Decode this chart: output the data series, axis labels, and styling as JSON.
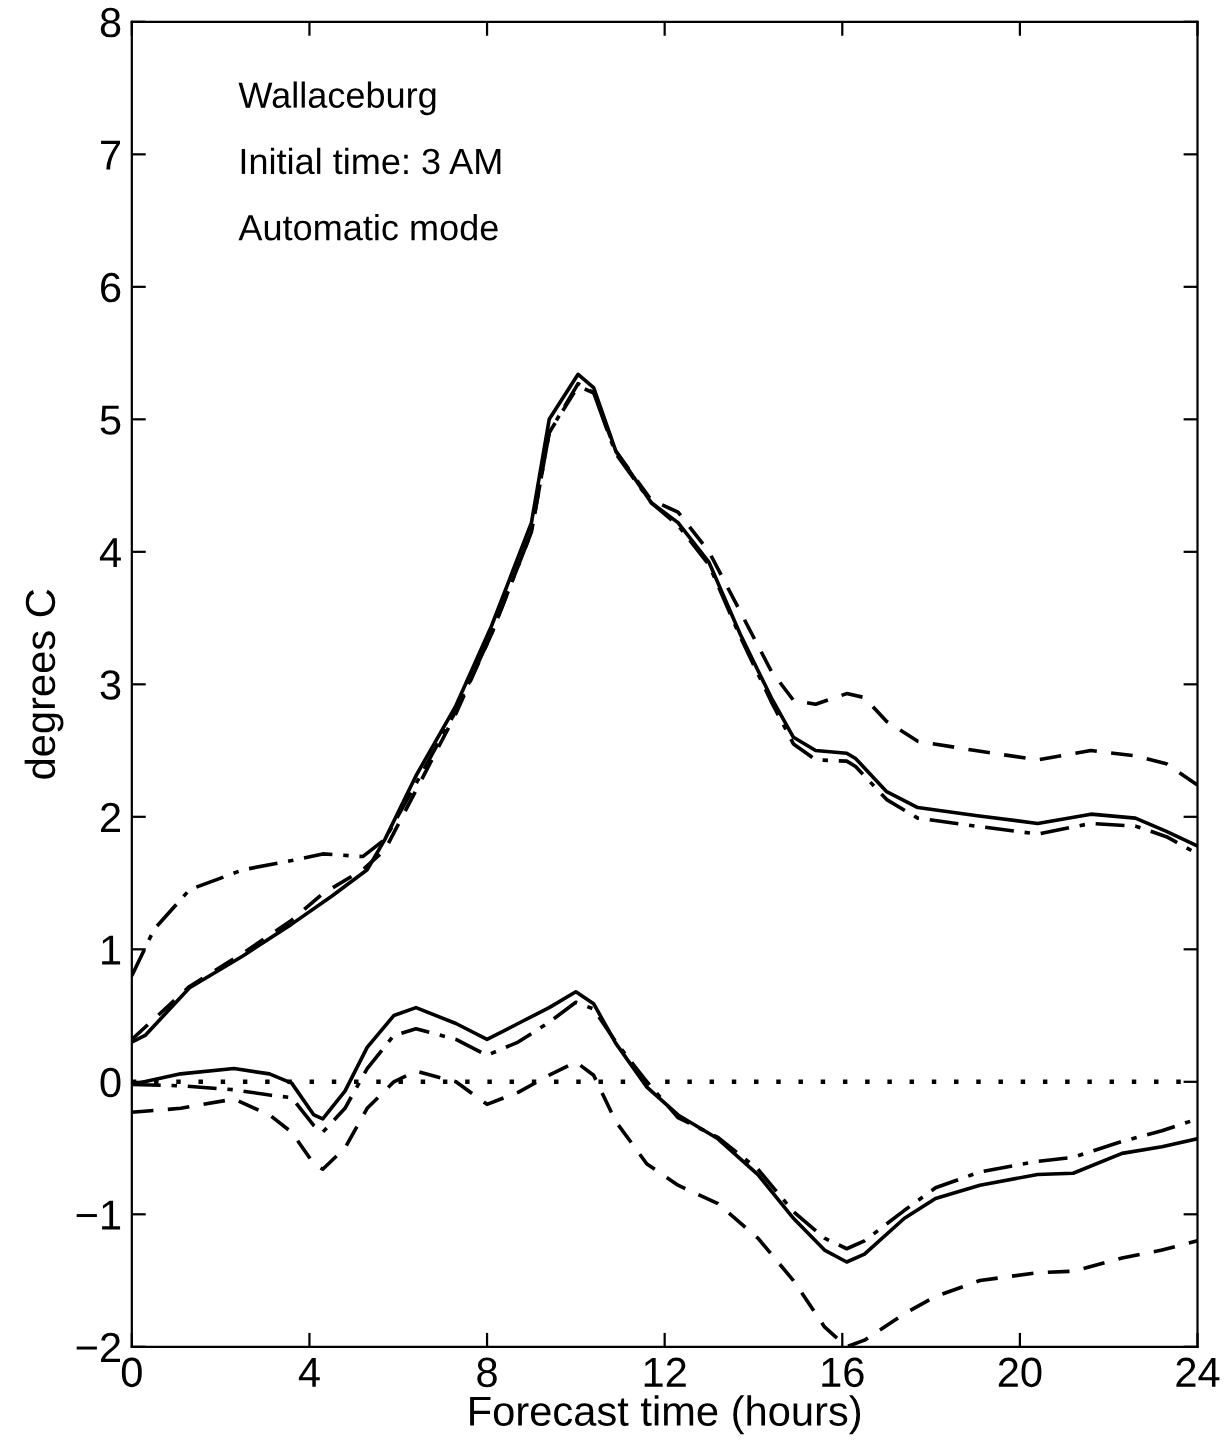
{
  "chart_data": {
    "type": "line",
    "xlabel": "Forecast time (hours)",
    "ylabel": "degrees C",
    "annotations": [
      "Wallaceburg",
      "Initial time: 3 AM",
      "Automatic mode"
    ],
    "xlim": [
      0,
      24
    ],
    "xticks": [
      0,
      4,
      8,
      12,
      16,
      20,
      24
    ],
    "ylim": [
      -2,
      8
    ],
    "yticks": [
      -2,
      -1,
      0,
      1,
      2,
      3,
      4,
      5,
      6,
      7,
      8
    ],
    "grid": false,
    "legend": false,
    "ref_lines": [
      {
        "axis": "y",
        "value": 0,
        "color": "#000000",
        "line_style": "dotted"
      }
    ],
    "series": [
      {
        "color": "#000000",
        "line_style": "solid",
        "x": [
          0,
          0.3,
          1.3,
          2.5,
          3.6,
          4.5,
          5.3,
          5.7,
          6.4,
          7.3,
          8.1,
          9.0,
          9.4,
          10.05,
          10.4,
          10.9,
          11.7,
          12.3,
          13.0,
          13.7,
          14.4,
          14.9,
          15.4,
          16.1,
          16.3,
          17.0,
          17.7,
          19.0,
          20.4,
          21.6,
          22.6,
          23.3,
          24
        ],
        "values": [
          0.3,
          0.35,
          0.71,
          0.95,
          1.19,
          1.4,
          1.6,
          1.83,
          2.31,
          2.84,
          3.44,
          4.22,
          5.0,
          5.34,
          5.24,
          4.76,
          4.37,
          4.22,
          3.92,
          3.38,
          2.9,
          2.6,
          2.5,
          2.48,
          2.44,
          2.19,
          2.07,
          2.01,
          1.95,
          2.02,
          1.99,
          1.89,
          1.78
        ]
      },
      {
        "color": "#000000",
        "line_style": "dashed",
        "x": [
          0,
          1.3,
          2.5,
          3.6,
          4.3,
          5.2,
          5.7,
          6.4,
          7.3,
          8.1,
          9.0,
          9.4,
          10.05,
          10.4,
          10.9,
          11.7,
          12.3,
          13.0,
          13.7,
          14.4,
          14.9,
          15.4,
          16.1,
          16.5,
          17.0,
          17.7,
          19.0,
          20.4,
          21.6,
          22.6,
          23.3,
          24
        ],
        "values": [
          0.32,
          0.72,
          0.97,
          1.22,
          1.42,
          1.6,
          1.75,
          2.2,
          2.78,
          3.38,
          4.15,
          4.9,
          5.25,
          5.2,
          4.76,
          4.39,
          4.3,
          4.0,
          3.55,
          3.1,
          2.88,
          2.85,
          2.93,
          2.9,
          2.72,
          2.57,
          2.5,
          2.43,
          2.5,
          2.46,
          2.4,
          2.24
        ]
      },
      {
        "color": "#000000",
        "line_style": "dashdot",
        "x": [
          0,
          0.5,
          1.3,
          2.5,
          3.6,
          4.3,
          5.2,
          5.7,
          6.4,
          7.3,
          8.1,
          9.0,
          9.4,
          10.05,
          10.4,
          10.9,
          11.7,
          12.3,
          13.0,
          13.7,
          14.4,
          14.9,
          15.4,
          16.1,
          16.3,
          17.0,
          17.7,
          19.0,
          20.4,
          21.6,
          22.6,
          23.3,
          24
        ],
        "values": [
          0.8,
          1.15,
          1.45,
          1.6,
          1.67,
          1.72,
          1.7,
          1.83,
          2.25,
          2.8,
          3.38,
          4.15,
          4.9,
          5.27,
          5.2,
          4.74,
          4.37,
          4.2,
          3.9,
          3.36,
          2.87,
          2.55,
          2.43,
          2.42,
          2.38,
          2.13,
          1.99,
          1.93,
          1.87,
          1.95,
          1.93,
          1.85,
          1.72
        ]
      },
      {
        "color": "#000000",
        "line_style": "solid",
        "x": [
          0,
          1.1,
          2.3,
          3.1,
          3.6,
          4.1,
          4.3,
          4.8,
          5.3,
          5.9,
          6.4,
          7.3,
          8.0,
          8.7,
          9.4,
          10.0,
          10.4,
          10.9,
          11.6,
          12.3,
          13.2,
          14.1,
          14.9,
          15.6,
          16.1,
          16.5,
          17.4,
          18.1,
          19.1,
          20.4,
          21.2,
          22.3,
          23.2,
          24
        ],
        "values": [
          -0.02,
          0.06,
          0.1,
          0.06,
          -0.01,
          -0.25,
          -0.28,
          -0.07,
          0.26,
          0.5,
          0.56,
          0.44,
          0.32,
          0.44,
          0.56,
          0.68,
          0.59,
          0.29,
          -0.04,
          -0.25,
          -0.43,
          -0.7,
          -1.03,
          -1.27,
          -1.36,
          -1.3,
          -1.03,
          -0.88,
          -0.78,
          -0.7,
          -0.69,
          -0.54,
          -0.49,
          -0.43
        ]
      },
      {
        "color": "#000000",
        "line_style": "dashdot",
        "x": [
          0,
          1.1,
          2.3,
          3.1,
          3.6,
          4.1,
          4.3,
          4.8,
          5.3,
          5.9,
          6.4,
          7.3,
          8.0,
          8.7,
          9.4,
          10.0,
          10.4,
          10.9,
          11.6,
          12.3,
          13.2,
          14.1,
          14.9,
          15.6,
          16.1,
          16.5,
          17.4,
          18.1,
          19.1,
          20.4,
          21.2,
          22.3,
          23.2,
          24
        ],
        "values": [
          -0.02,
          -0.03,
          -0.06,
          -0.1,
          -0.12,
          -0.33,
          -0.38,
          -0.2,
          0.1,
          0.35,
          0.4,
          0.32,
          0.2,
          0.3,
          0.45,
          0.6,
          0.55,
          0.3,
          0.0,
          -0.27,
          -0.42,
          -0.66,
          -0.98,
          -1.18,
          -1.26,
          -1.2,
          -0.97,
          -0.8,
          -0.68,
          -0.6,
          -0.57,
          -0.45,
          -0.37,
          -0.28
        ]
      },
      {
        "color": "#000000",
        "line_style": "dashed",
        "x": [
          0,
          1.1,
          2.3,
          3.1,
          3.6,
          4.1,
          4.3,
          4.8,
          5.3,
          5.9,
          6.4,
          7.3,
          8.0,
          8.7,
          9.4,
          10.0,
          10.4,
          10.9,
          11.6,
          12.3,
          13.2,
          14.1,
          14.9,
          15.6,
          16.1,
          16.5,
          17.4,
          18.1,
          19.1,
          20.4,
          21.2,
          22.3,
          23.2,
          24
        ],
        "values": [
          -0.23,
          -0.2,
          -0.13,
          -0.25,
          -0.38,
          -0.62,
          -0.66,
          -0.5,
          -0.2,
          0.0,
          0.08,
          0.0,
          -0.17,
          -0.08,
          0.05,
          0.15,
          0.05,
          -0.3,
          -0.62,
          -0.78,
          -0.92,
          -1.18,
          -1.5,
          -1.85,
          -2.0,
          -1.95,
          -1.75,
          -1.62,
          -1.5,
          -1.44,
          -1.43,
          -1.33,
          -1.27,
          -1.2
        ]
      }
    ]
  }
}
